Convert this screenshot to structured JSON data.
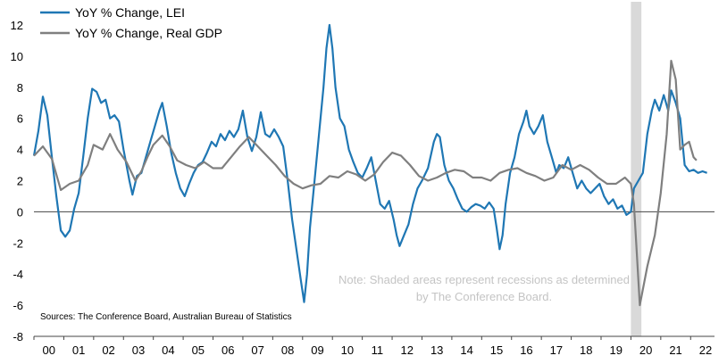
{
  "chart_data": {
    "type": "line",
    "title": "",
    "xlabel": "",
    "ylabel": "",
    "ylim": [
      -8,
      12
    ],
    "yticks": [
      -8,
      -6,
      -4,
      -2,
      0,
      2,
      4,
      6,
      8,
      10,
      12
    ],
    "xlim": [
      2000,
      2022.8
    ],
    "xtick_labels": [
      "00",
      "01",
      "02",
      "03",
      "04",
      "05",
      "06",
      "07",
      "08",
      "09",
      "10",
      "11",
      "12",
      "13",
      "14",
      "15",
      "16",
      "17",
      "18",
      "19",
      "20",
      "21",
      "22"
    ],
    "legend_position": "top-left",
    "grid": false,
    "recession_shading": [
      [
        2020.0,
        2020.35
      ]
    ],
    "note": "Note: Shaded areas represent recessions as determined by The Conference Board.",
    "source": "Sources: The Conference Board, Australian Bureau of Statistics",
    "series": [
      {
        "name": "YoY % Change, LEI",
        "color": "#1f77b4",
        "points": [
          [
            2000.0,
            3.6
          ],
          [
            2000.15,
            5.2
          ],
          [
            2000.3,
            7.4
          ],
          [
            2000.45,
            6.2
          ],
          [
            2000.6,
            3.5
          ],
          [
            2000.75,
            1.0
          ],
          [
            2000.9,
            -1.2
          ],
          [
            2001.05,
            -1.6
          ],
          [
            2001.2,
            -1.2
          ],
          [
            2001.35,
            0.2
          ],
          [
            2001.5,
            1.2
          ],
          [
            2001.65,
            3.5
          ],
          [
            2001.8,
            6.0
          ],
          [
            2001.95,
            7.9
          ],
          [
            2002.1,
            7.7
          ],
          [
            2002.25,
            7.0
          ],
          [
            2002.4,
            7.2
          ],
          [
            2002.55,
            6.0
          ],
          [
            2002.7,
            6.2
          ],
          [
            2002.85,
            5.8
          ],
          [
            2003.0,
            4.0
          ],
          [
            2003.1,
            3.0
          ],
          [
            2003.2,
            2.0
          ],
          [
            2003.3,
            1.1
          ],
          [
            2003.45,
            2.3
          ],
          [
            2003.6,
            2.5
          ],
          [
            2003.75,
            3.5
          ],
          [
            2003.9,
            4.5
          ],
          [
            2004.05,
            5.5
          ],
          [
            2004.2,
            6.5
          ],
          [
            2004.3,
            7.0
          ],
          [
            2004.45,
            5.5
          ],
          [
            2004.6,
            3.8
          ],
          [
            2004.75,
            2.5
          ],
          [
            2004.9,
            1.5
          ],
          [
            2005.05,
            1.0
          ],
          [
            2005.2,
            1.8
          ],
          [
            2005.35,
            2.5
          ],
          [
            2005.5,
            3.0
          ],
          [
            2005.65,
            3.2
          ],
          [
            2005.8,
            3.8
          ],
          [
            2005.95,
            4.5
          ],
          [
            2006.1,
            4.2
          ],
          [
            2006.25,
            5.0
          ],
          [
            2006.4,
            4.6
          ],
          [
            2006.55,
            5.2
          ],
          [
            2006.7,
            4.8
          ],
          [
            2006.85,
            5.3
          ],
          [
            2007.0,
            6.5
          ],
          [
            2007.15,
            4.8
          ],
          [
            2007.3,
            3.9
          ],
          [
            2007.45,
            4.8
          ],
          [
            2007.6,
            6.4
          ],
          [
            2007.75,
            5.0
          ],
          [
            2007.9,
            4.8
          ],
          [
            2008.05,
            5.3
          ],
          [
            2008.2,
            4.8
          ],
          [
            2008.35,
            4.2
          ],
          [
            2008.5,
            2.0
          ],
          [
            2008.65,
            -0.5
          ],
          [
            2008.8,
            -2.5
          ],
          [
            2008.95,
            -4.5
          ],
          [
            2009.05,
            -5.8
          ],
          [
            2009.15,
            -4.0
          ],
          [
            2009.25,
            -1.0
          ],
          [
            2009.4,
            2.0
          ],
          [
            2009.55,
            5.0
          ],
          [
            2009.7,
            8.0
          ],
          [
            2009.8,
            10.5
          ],
          [
            2009.9,
            12.0
          ],
          [
            2010.0,
            10.5
          ],
          [
            2010.1,
            8.0
          ],
          [
            2010.25,
            6.0
          ],
          [
            2010.4,
            5.5
          ],
          [
            2010.55,
            4.0
          ],
          [
            2010.7,
            3.2
          ],
          [
            2010.85,
            2.5
          ],
          [
            2011.0,
            2.2
          ],
          [
            2011.15,
            2.8
          ],
          [
            2011.3,
            3.5
          ],
          [
            2011.45,
            2.0
          ],
          [
            2011.6,
            0.5
          ],
          [
            2011.75,
            0.2
          ],
          [
            2011.9,
            0.7
          ],
          [
            2012.05,
            -0.5
          ],
          [
            2012.15,
            -1.5
          ],
          [
            2012.25,
            -2.2
          ],
          [
            2012.4,
            -1.5
          ],
          [
            2012.55,
            -0.8
          ],
          [
            2012.7,
            0.5
          ],
          [
            2012.85,
            1.5
          ],
          [
            2013.0,
            2.0
          ],
          [
            2013.2,
            2.8
          ],
          [
            2013.4,
            4.5
          ],
          [
            2013.5,
            5.0
          ],
          [
            2013.6,
            4.8
          ],
          [
            2013.75,
            3.0
          ],
          [
            2013.9,
            2.0
          ],
          [
            2014.05,
            1.5
          ],
          [
            2014.2,
            0.8
          ],
          [
            2014.35,
            0.2
          ],
          [
            2014.5,
            0.0
          ],
          [
            2014.65,
            0.3
          ],
          [
            2014.8,
            0.5
          ],
          [
            2014.95,
            0.4
          ],
          [
            2015.1,
            0.2
          ],
          [
            2015.25,
            0.6
          ],
          [
            2015.4,
            0.2
          ],
          [
            2015.5,
            -1.0
          ],
          [
            2015.6,
            -2.4
          ],
          [
            2015.7,
            -1.5
          ],
          [
            2015.8,
            0.5
          ],
          [
            2015.95,
            2.5
          ],
          [
            2016.1,
            3.5
          ],
          [
            2016.25,
            5.0
          ],
          [
            2016.4,
            5.8
          ],
          [
            2016.5,
            6.5
          ],
          [
            2016.6,
            5.5
          ],
          [
            2016.75,
            5.0
          ],
          [
            2016.9,
            5.5
          ],
          [
            2017.05,
            6.2
          ],
          [
            2017.2,
            4.5
          ],
          [
            2017.35,
            3.5
          ],
          [
            2017.5,
            2.5
          ],
          [
            2017.6,
            3.0
          ],
          [
            2017.75,
            2.8
          ],
          [
            2017.9,
            3.5
          ],
          [
            2018.05,
            2.5
          ],
          [
            2018.2,
            1.5
          ],
          [
            2018.35,
            2.0
          ],
          [
            2018.5,
            1.5
          ],
          [
            2018.65,
            1.2
          ],
          [
            2018.8,
            1.5
          ],
          [
            2018.95,
            1.8
          ],
          [
            2019.1,
            1.0
          ],
          [
            2019.25,
            0.5
          ],
          [
            2019.4,
            0.8
          ],
          [
            2019.55,
            0.2
          ],
          [
            2019.7,
            0.4
          ],
          [
            2019.85,
            -0.2
          ],
          [
            2020.0,
            0.0
          ],
          [
            2020.1,
            1.5
          ],
          [
            2020.25,
            2.0
          ],
          [
            2020.4,
            2.5
          ],
          [
            2020.55,
            5.0
          ],
          [
            2020.7,
            6.5
          ],
          [
            2020.8,
            7.2
          ],
          [
            2020.95,
            6.5
          ],
          [
            2021.1,
            7.5
          ],
          [
            2021.25,
            6.5
          ],
          [
            2021.35,
            7.8
          ],
          [
            2021.5,
            7.0
          ],
          [
            2021.65,
            6.0
          ],
          [
            2021.8,
            3.0
          ],
          [
            2021.95,
            2.6
          ],
          [
            2022.1,
            2.7
          ],
          [
            2022.25,
            2.5
          ],
          [
            2022.4,
            2.6
          ],
          [
            2022.55,
            2.5
          ]
        ]
      },
      {
        "name": "YoY % Change, Real GDP",
        "color": "#7f7f7f",
        "points": [
          [
            2000.0,
            3.6
          ],
          [
            2000.3,
            4.2
          ],
          [
            2000.6,
            3.4
          ],
          [
            2000.9,
            1.4
          ],
          [
            2001.2,
            1.8
          ],
          [
            2001.5,
            2.0
          ],
          [
            2001.8,
            3.0
          ],
          [
            2002.0,
            4.3
          ],
          [
            2002.3,
            4.0
          ],
          [
            2002.55,
            5.0
          ],
          [
            2002.8,
            4.0
          ],
          [
            2003.1,
            3.2
          ],
          [
            2003.4,
            2.0
          ],
          [
            2003.6,
            2.6
          ],
          [
            2003.8,
            3.5
          ],
          [
            2004.0,
            4.3
          ],
          [
            2004.3,
            4.9
          ],
          [
            2004.55,
            4.2
          ],
          [
            2004.8,
            3.3
          ],
          [
            2005.1,
            3.0
          ],
          [
            2005.4,
            2.8
          ],
          [
            2005.7,
            3.2
          ],
          [
            2006.0,
            2.8
          ],
          [
            2006.3,
            2.8
          ],
          [
            2006.6,
            3.5
          ],
          [
            2006.9,
            4.2
          ],
          [
            2007.2,
            4.8
          ],
          [
            2007.5,
            4.2
          ],
          [
            2007.8,
            3.6
          ],
          [
            2008.1,
            3.0
          ],
          [
            2008.4,
            2.3
          ],
          [
            2008.7,
            1.8
          ],
          [
            2009.0,
            1.5
          ],
          [
            2009.3,
            1.7
          ],
          [
            2009.6,
            1.8
          ],
          [
            2009.9,
            2.3
          ],
          [
            2010.2,
            2.2
          ],
          [
            2010.5,
            2.6
          ],
          [
            2010.8,
            2.4
          ],
          [
            2011.1,
            2.0
          ],
          [
            2011.4,
            2.4
          ],
          [
            2011.7,
            3.2
          ],
          [
            2012.0,
            3.8
          ],
          [
            2012.3,
            3.6
          ],
          [
            2012.6,
            3.0
          ],
          [
            2012.9,
            2.3
          ],
          [
            2013.2,
            2.0
          ],
          [
            2013.5,
            2.2
          ],
          [
            2013.8,
            2.5
          ],
          [
            2014.1,
            2.7
          ],
          [
            2014.4,
            2.6
          ],
          [
            2014.7,
            2.2
          ],
          [
            2015.0,
            2.2
          ],
          [
            2015.3,
            2.0
          ],
          [
            2015.6,
            2.5
          ],
          [
            2015.9,
            2.7
          ],
          [
            2016.2,
            2.8
          ],
          [
            2016.5,
            2.5
          ],
          [
            2016.8,
            2.3
          ],
          [
            2017.1,
            2.0
          ],
          [
            2017.4,
            2.2
          ],
          [
            2017.7,
            3.0
          ],
          [
            2018.0,
            2.7
          ],
          [
            2018.3,
            3.0
          ],
          [
            2018.6,
            2.7
          ],
          [
            2018.9,
            2.2
          ],
          [
            2019.2,
            1.8
          ],
          [
            2019.5,
            1.8
          ],
          [
            2019.8,
            2.2
          ],
          [
            2020.0,
            1.8
          ],
          [
            2020.1,
            0.5
          ],
          [
            2020.3,
            -6.0
          ],
          [
            2020.55,
            -3.5
          ],
          [
            2020.8,
            -1.5
          ],
          [
            2021.0,
            1.2
          ],
          [
            2021.2,
            5.0
          ],
          [
            2021.35,
            9.7
          ],
          [
            2021.5,
            8.5
          ],
          [
            2021.65,
            4.0
          ],
          [
            2021.8,
            4.3
          ],
          [
            2021.95,
            4.5
          ],
          [
            2022.1,
            3.5
          ],
          [
            2022.2,
            3.3
          ]
        ]
      }
    ]
  }
}
